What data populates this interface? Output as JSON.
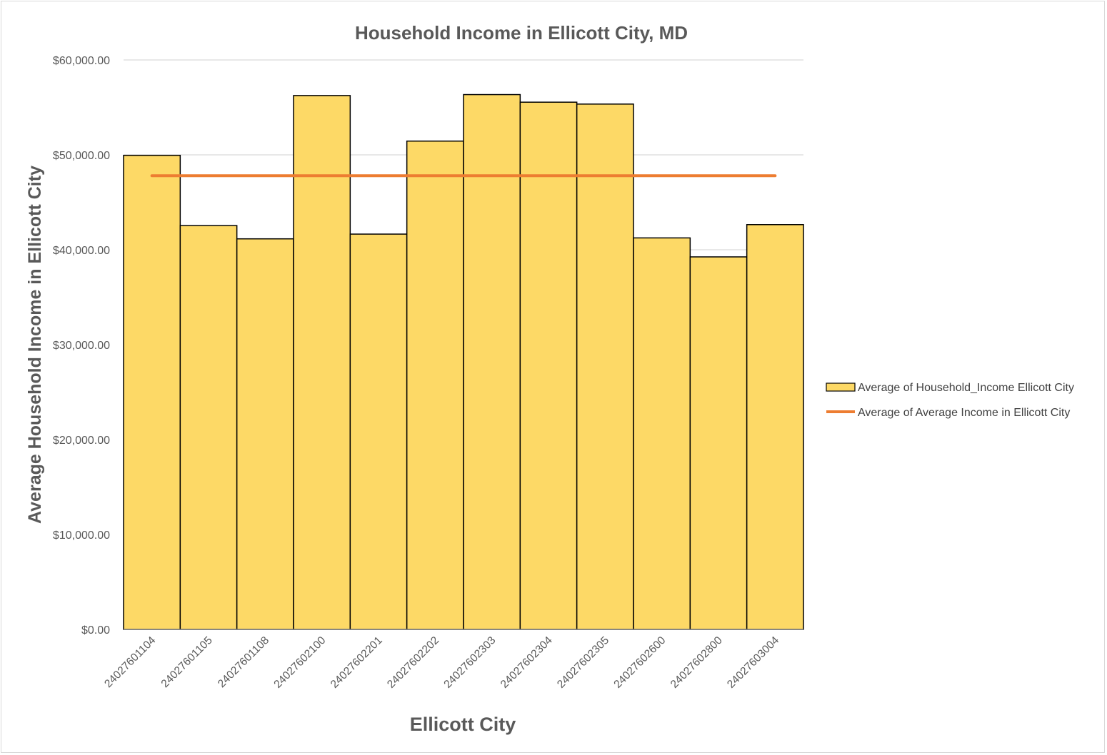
{
  "chart_data": {
    "type": "bar",
    "title": "Household Income in Ellicott City, MD",
    "xlabel": "Ellicott City",
    "ylabel": "Average Household Income in Ellicott City",
    "categories": [
      "24027601104",
      "24027601105",
      "24027601108",
      "24027602100",
      "24027602201",
      "24027602202",
      "24027602303",
      "24027602304",
      "24027602305",
      "24027602600",
      "24027602800",
      "24027603004"
    ],
    "series": [
      {
        "name": "Average of Household_Income Ellicott City",
        "type": "bar",
        "color": "#FDD966",
        "values": [
          49950,
          42550,
          41150,
          56250,
          41650,
          51450,
          56350,
          55550,
          55350,
          41250,
          39250,
          42650
        ]
      },
      {
        "name": "Average of Average Income in Ellicott City",
        "type": "line",
        "color": "#ED7D31",
        "values": [
          47800,
          47800,
          47800,
          47800,
          47800,
          47800,
          47800,
          47800,
          47800,
          47800,
          47800,
          47800
        ]
      }
    ],
    "ylim": [
      0,
      60000
    ],
    "yticks": [
      0,
      10000,
      20000,
      30000,
      40000,
      50000,
      60000
    ],
    "ytick_labels": [
      "$0.00",
      "$10,000.00",
      "$20,000.00",
      "$30,000.00",
      "$40,000.00",
      "$50,000.00",
      "$60,000.00"
    ],
    "grid": true,
    "legend_position": "right"
  }
}
